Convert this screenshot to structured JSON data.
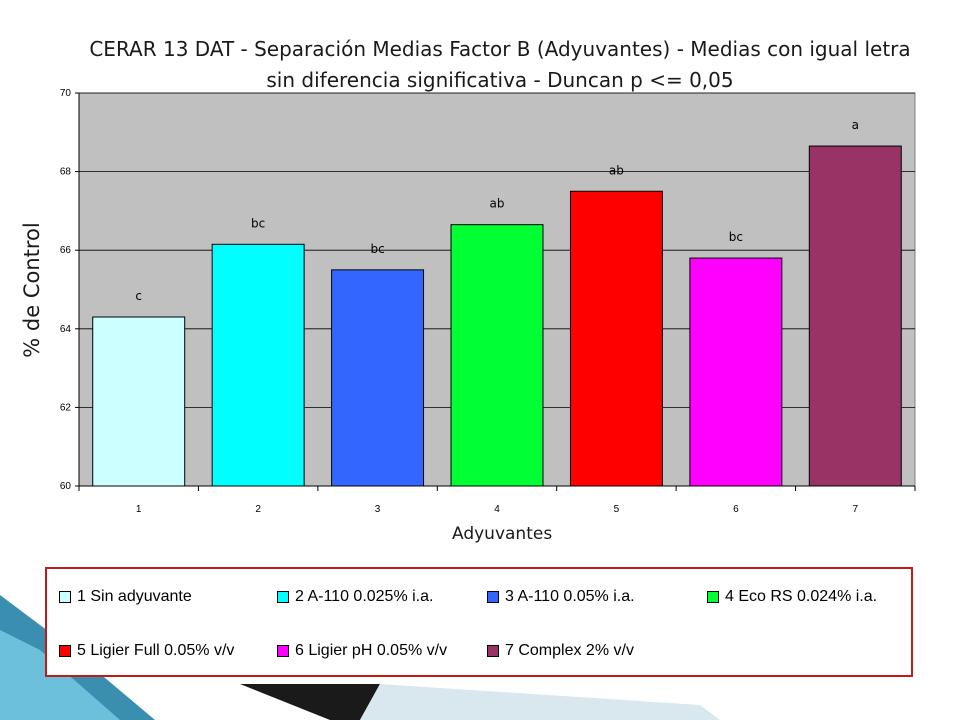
{
  "chart_data": {
    "type": "bar",
    "title": "CERAR 13 DAT - Separación Medias Factor B (Adyuvantes) - Medias con igual letra sin diferencia significativa - Duncan p <=  0,05",
    "xlabel": "Adyuvantes",
    "ylabel": "% de Control",
    "ylim": [
      60,
      70
    ],
    "yticks": [
      "60",
      "62",
      "64",
      "66",
      "68",
      "70"
    ],
    "categories": [
      "1",
      "2",
      "3",
      "4",
      "5",
      "6",
      "7"
    ],
    "values": [
      64.3,
      66.15,
      65.5,
      66.65,
      67.5,
      65.8,
      68.65
    ],
    "letters": [
      "c",
      "bc",
      "bc",
      "ab",
      "ab",
      "bc",
      "a"
    ],
    "colors": [
      "#ccffff",
      "#00ffff",
      "#3366ff",
      "#00ff33",
      "#ff0000",
      "#ff00ff",
      "#993366"
    ],
    "grid": true,
    "plot_background": "#c0c0c0"
  },
  "legend": [
    {
      "label": "1  Sin adyuvante",
      "color": "#ccffff"
    },
    {
      "label": "2  A-110  0.025% i.a.",
      "color": "#00ffff"
    },
    {
      "label": "3  A-110  0.05% i.a.",
      "color": "#3366ff"
    },
    {
      "label": "4  Eco RS  0.024% i.a.",
      "color": "#00ff33"
    },
    {
      "label": "5  Ligier Full  0.05% v/v",
      "color": "#ff0000"
    },
    {
      "label": "6  Ligier pH  0.05% v/v",
      "color": "#ff00ff"
    },
    {
      "label": "7  Complex 2% v/v",
      "color": "#993366"
    }
  ]
}
